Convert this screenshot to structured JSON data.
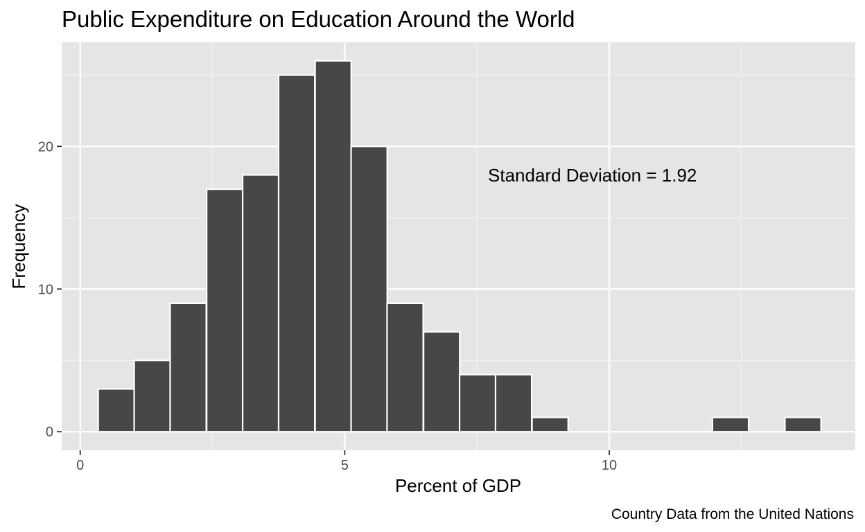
{
  "chart_data": {
    "type": "bar",
    "title": "Public Expenditure on Education Around the World",
    "xlabel": "Percent of GDP",
    "ylabel": "Frequency",
    "caption": "Country Data from the United Nations",
    "annotation": "Standard Deviation = 1.92",
    "xlim": [
      -0.35,
      14.65
    ],
    "ylim": [
      -1.3,
      27.3
    ],
    "x_ticks": [
      0,
      5,
      10
    ],
    "x_tick_labels": [
      "0",
      "5",
      "10"
    ],
    "y_ticks": [
      0,
      10,
      20
    ],
    "y_tick_labels": [
      "0",
      "10",
      "20"
    ],
    "bin_width": 0.683,
    "bins": [
      {
        "start": 0.34,
        "count": 3
      },
      {
        "start": 1.02,
        "count": 5
      },
      {
        "start": 1.7,
        "count": 9
      },
      {
        "start": 2.39,
        "count": 17
      },
      {
        "start": 3.07,
        "count": 18
      },
      {
        "start": 3.75,
        "count": 25
      },
      {
        "start": 4.44,
        "count": 26
      },
      {
        "start": 5.12,
        "count": 20
      },
      {
        "start": 5.8,
        "count": 9
      },
      {
        "start": 6.49,
        "count": 7
      },
      {
        "start": 7.17,
        "count": 4
      },
      {
        "start": 7.85,
        "count": 4
      },
      {
        "start": 8.54,
        "count": 1
      },
      {
        "start": 9.22,
        "count": 0
      },
      {
        "start": 9.9,
        "count": 0
      },
      {
        "start": 10.59,
        "count": 0
      },
      {
        "start": 11.27,
        "count": 0
      },
      {
        "start": 11.95,
        "count": 1
      },
      {
        "start": 12.64,
        "count": 0
      },
      {
        "start": 13.32,
        "count": 1
      }
    ],
    "bar_fill": "#474747",
    "bar_outline": "#ffffff",
    "panel_background": "#e5e5e5",
    "grid": true,
    "legend": "none"
  }
}
